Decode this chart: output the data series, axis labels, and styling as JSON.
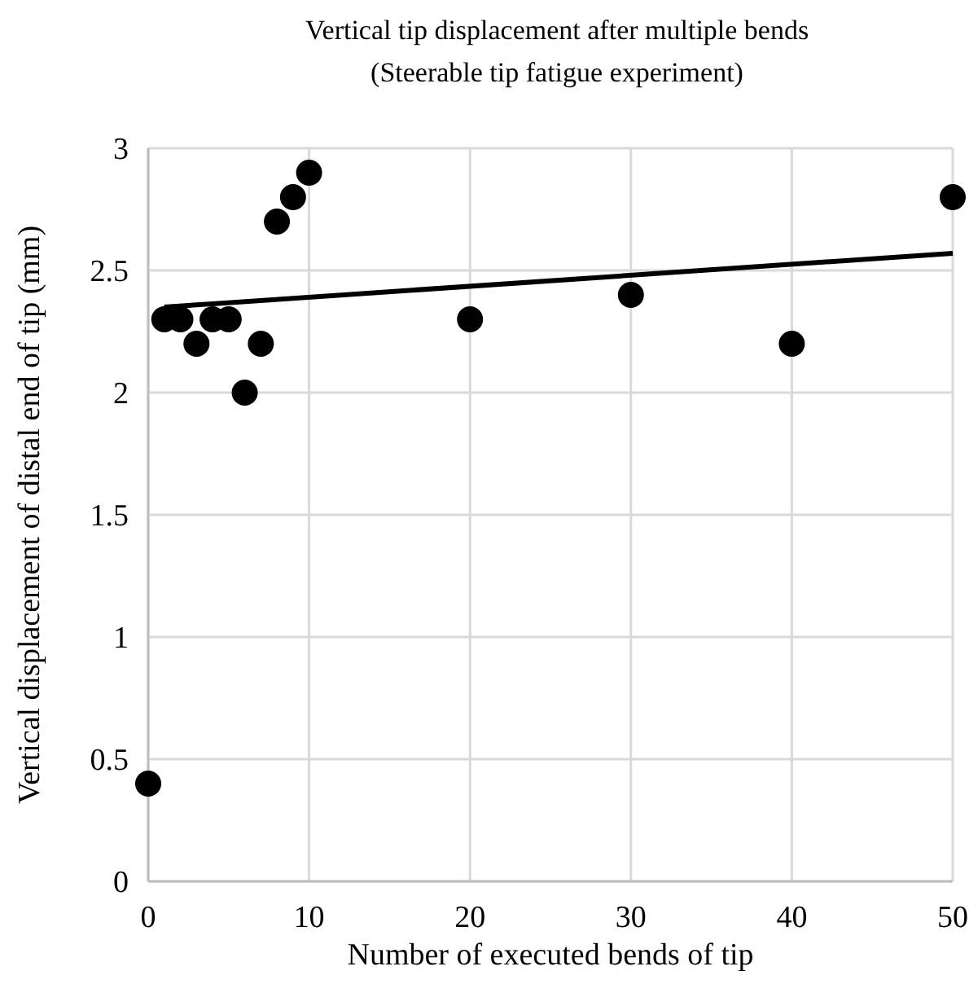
{
  "chart_data": {
    "type": "scatter",
    "title": "Vertical tip displacement after multiple bends",
    "subtitle": "(Steerable tip fatigue experiment)",
    "xlabel": "Number of executed bends of tip",
    "ylabel": "Vertical displacement of distal end of tip (mm)",
    "xlim": [
      0,
      50
    ],
    "xticks": [
      0,
      10,
      20,
      30,
      40,
      50
    ],
    "ylim": [
      0,
      3
    ],
    "yticks": [
      0,
      0.5,
      1,
      1.5,
      2,
      2.5,
      3
    ],
    "grid": true,
    "marker": "circle",
    "series": [
      {
        "color": "#000000",
        "x": [
          0,
          1,
          2,
          3,
          4,
          5,
          6,
          7,
          8,
          9,
          10,
          20,
          30,
          40,
          50
        ],
        "values": [
          0.4,
          2.3,
          2.3,
          2.2,
          2.3,
          2.3,
          2.0,
          2.2,
          2.7,
          2.8,
          2.9,
          2.3,
          2.4,
          2.2,
          2.8
        ]
      },
      {
        "type": "line",
        "color": "#000000",
        "marker": "none",
        "line_style": "solid",
        "x": [
          1,
          50
        ],
        "values": [
          2.35,
          2.57
        ]
      }
    ]
  }
}
